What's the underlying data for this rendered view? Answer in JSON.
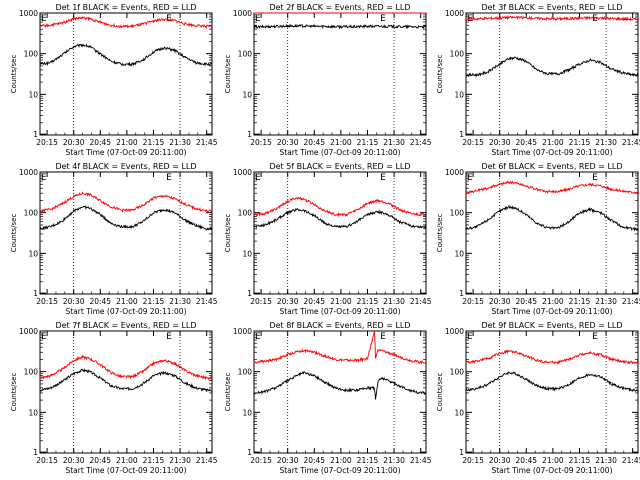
{
  "x_ticks": [
    "20:15",
    "20:30",
    "20:45",
    "21:00",
    "21:15",
    "21:30",
    "21:45"
  ],
  "x_tick_minutes": [
    4,
    19,
    34,
    49,
    64,
    79,
    94
  ],
  "y_tick_labels": [
    "1",
    "10",
    "100",
    "1000"
  ],
  "xlabel": "Start Time (07-Oct-09 20:11:00)",
  "ylabel": "Counts/sec",
  "marker_label": "E",
  "colors": {
    "events": "#000000",
    "lld": "#ff0000"
  },
  "chart_data": [
    {
      "type": "line",
      "title": "Det 1f BLACK = Events, RED = LLD",
      "xlabel": "Start Time (07-Oct-09 20:11:00)",
      "ylabel": "Counts/sec",
      "xlim": [
        0,
        97
      ],
      "ylim": [
        1,
        1000
      ],
      "yscale": "log",
      "vlines": [
        19,
        79
      ],
      "x": [
        0,
        6,
        12,
        19,
        24,
        28,
        34,
        40,
        46,
        52,
        58,
        64,
        70,
        76,
        82,
        88,
        94,
        97
      ],
      "series": [
        {
          "name": "Events",
          "color": "#000000",
          "values": [
            55,
            60,
            90,
            150,
            165,
            150,
            100,
            65,
            55,
            55,
            70,
            110,
            140,
            120,
            80,
            60,
            55,
            55
          ]
        },
        {
          "name": "LLD",
          "color": "#ff0000",
          "values": [
            480,
            500,
            560,
            720,
            760,
            720,
            590,
            500,
            470,
            470,
            530,
            640,
            700,
            650,
            540,
            490,
            470,
            470
          ]
        }
      ]
    },
    {
      "type": "line",
      "title": "Det 2f BLACK = Events, RED = LLD",
      "xlabel": "Start Time (07-Oct-09 20:11:00)",
      "ylabel": "Counts/sec",
      "xlim": [
        0,
        97
      ],
      "ylim": [
        1,
        1000
      ],
      "yscale": "log",
      "vlines": [
        19,
        79
      ],
      "x": [
        0,
        6,
        12,
        19,
        24,
        28,
        34,
        40,
        46,
        52,
        58,
        64,
        70,
        76,
        82,
        88,
        94,
        97
      ],
      "series": [
        {
          "name": "Events",
          "color": "#000000",
          "values": [
            450,
            460,
            470,
            480,
            480,
            480,
            470,
            470,
            460,
            460,
            460,
            470,
            470,
            470,
            460,
            460,
            450,
            450
          ]
        },
        {
          "name": "LLD",
          "color": "#ff0000",
          "values": [
            1350,
            1350,
            1380,
            1400,
            1400,
            1400,
            1380,
            1380,
            1360,
            1360,
            1360,
            1380,
            1380,
            1370,
            1360,
            1350,
            1340,
            1340
          ]
        }
      ]
    },
    {
      "type": "line",
      "title": "Det 3f BLACK = Events, RED = LLD",
      "xlabel": "Start Time (07-Oct-09 20:11:00)",
      "ylabel": "Counts/sec",
      "xlim": [
        0,
        97
      ],
      "ylim": [
        1,
        1000
      ],
      "yscale": "log",
      "vlines": [
        19,
        79
      ],
      "x": [
        0,
        6,
        12,
        19,
        24,
        28,
        34,
        40,
        46,
        52,
        58,
        64,
        70,
        76,
        82,
        88,
        94,
        97
      ],
      "series": [
        {
          "name": "Events",
          "color": "#000000",
          "values": [
            30,
            30,
            35,
            55,
            75,
            80,
            65,
            40,
            32,
            32,
            40,
            55,
            70,
            60,
            42,
            34,
            30,
            30
          ]
        },
        {
          "name": "LLD",
          "color": "#ff0000",
          "values": [
            700,
            720,
            740,
            760,
            780,
            780,
            760,
            740,
            720,
            720,
            730,
            750,
            760,
            750,
            730,
            720,
            700,
            700
          ]
        }
      ]
    },
    {
      "type": "line",
      "title": "Det 4f BLACK = Events, RED = LLD",
      "xlabel": "Start Time (07-Oct-09 20:11:00)",
      "ylabel": "Counts/sec",
      "xlim": [
        0,
        97
      ],
      "ylim": [
        1,
        1000
      ],
      "yscale": "log",
      "vlines": [
        19,
        79
      ],
      "x": [
        0,
        6,
        12,
        19,
        24,
        28,
        34,
        40,
        46,
        52,
        58,
        64,
        70,
        76,
        82,
        88,
        94,
        97
      ],
      "series": [
        {
          "name": "Events",
          "color": "#000000",
          "values": [
            40,
            45,
            60,
            110,
            140,
            130,
            90,
            55,
            45,
            45,
            60,
            100,
            120,
            100,
            65,
            48,
            40,
            40
          ]
        },
        {
          "name": "LLD",
          "color": "#ff0000",
          "values": [
            110,
            120,
            160,
            250,
            300,
            280,
            200,
            140,
            115,
            115,
            150,
            230,
            260,
            220,
            160,
            125,
            110,
            110
          ]
        }
      ]
    },
    {
      "type": "line",
      "title": "Det 5f BLACK = Events, RED = LLD",
      "xlabel": "Start Time (07-Oct-09 20:11:00)",
      "ylabel": "Counts/sec",
      "xlim": [
        0,
        97
      ],
      "ylim": [
        1,
        1000
      ],
      "yscale": "log",
      "vlines": [
        19,
        79
      ],
      "x": [
        0,
        6,
        12,
        19,
        24,
        28,
        34,
        40,
        46,
        52,
        58,
        64,
        70,
        76,
        82,
        88,
        94,
        97
      ],
      "series": [
        {
          "name": "Events",
          "color": "#000000",
          "values": [
            45,
            50,
            65,
            100,
            120,
            115,
            85,
            55,
            45,
            45,
            60,
            90,
            105,
            90,
            60,
            48,
            45,
            45
          ]
        },
        {
          "name": "LLD",
          "color": "#ff0000",
          "values": [
            90,
            95,
            120,
            190,
            230,
            215,
            160,
            110,
            90,
            90,
            115,
            170,
            200,
            170,
            120,
            95,
            90,
            90
          ]
        }
      ]
    },
    {
      "type": "line",
      "title": "Det 6f BLACK = Events, RED = LLD",
      "xlabel": "Start Time (07-Oct-09 20:11:00)",
      "ylabel": "Counts/sec",
      "xlim": [
        0,
        97
      ],
      "ylim": [
        1,
        1000
      ],
      "yscale": "log",
      "vlines": [
        19,
        79
      ],
      "x": [
        0,
        6,
        12,
        19,
        24,
        28,
        34,
        40,
        46,
        52,
        58,
        64,
        70,
        76,
        82,
        88,
        94,
        97
      ],
      "series": [
        {
          "name": "Events",
          "color": "#000000",
          "values": [
            40,
            45,
            65,
            110,
            140,
            130,
            90,
            55,
            42,
            42,
            60,
            100,
            120,
            100,
            65,
            45,
            40,
            40
          ]
        },
        {
          "name": "LLD",
          "color": "#ff0000",
          "values": [
            320,
            340,
            400,
            500,
            560,
            540,
            450,
            370,
            330,
            330,
            380,
            460,
            500,
            460,
            380,
            340,
            320,
            320
          ]
        }
      ]
    },
    {
      "type": "line",
      "title": "Det 7f BLACK = Events, RED = LLD",
      "xlabel": "Start Time (07-Oct-09 20:11:00)",
      "ylabel": "Counts/sec",
      "xlim": [
        0,
        97
      ],
      "ylim": [
        1,
        1000
      ],
      "yscale": "log",
      "vlines": [
        19,
        79
      ],
      "x": [
        0,
        6,
        12,
        19,
        24,
        28,
        34,
        40,
        46,
        52,
        58,
        64,
        70,
        76,
        82,
        88,
        94,
        97
      ],
      "series": [
        {
          "name": "Events",
          "color": "#000000",
          "values": [
            35,
            40,
            55,
            90,
            110,
            100,
            70,
            45,
            38,
            38,
            50,
            80,
            95,
            80,
            52,
            40,
            35,
            35
          ]
        },
        {
          "name": "LLD",
          "color": "#ff0000",
          "values": [
            70,
            80,
            110,
            190,
            230,
            210,
            150,
            95,
            75,
            75,
            100,
            160,
            190,
            160,
            105,
            80,
            70,
            70
          ]
        }
      ]
    },
    {
      "type": "line",
      "title": "Det 8f BLACK = Events, RED = LLD",
      "xlabel": "Start Time (07-Oct-09 20:11:00)",
      "ylabel": "Counts/sec",
      "xlim": [
        0,
        97
      ],
      "ylim": [
        1,
        1000
      ],
      "yscale": "log",
      "vlines": [
        19,
        79
      ],
      "x": [
        0,
        6,
        12,
        19,
        24,
        28,
        34,
        40,
        46,
        52,
        58,
        64,
        68,
        68.5,
        70,
        72,
        76,
        82,
        88,
        94,
        97
      ],
      "series": [
        {
          "name": "Events",
          "color": "#000000",
          "values": [
            30,
            32,
            40,
            60,
            80,
            95,
            80,
            55,
            40,
            35,
            35,
            40,
            40,
            20,
            60,
            70,
            60,
            45,
            35,
            30,
            30
          ]
        },
        {
          "name": "LLD",
          "color": "#ff0000",
          "values": [
            170,
            180,
            200,
            260,
            310,
            330,
            300,
            240,
            200,
            190,
            190,
            210,
            1000,
            220,
            340,
            330,
            290,
            230,
            190,
            170,
            170
          ]
        }
      ]
    },
    {
      "type": "line",
      "title": "Det 9f BLACK = Events, RED = LLD",
      "xlabel": "Start Time (07-Oct-09 20:11:00)",
      "ylabel": "Counts/sec",
      "xlim": [
        0,
        97
      ],
      "ylim": [
        1,
        1000
      ],
      "yscale": "log",
      "vlines": [
        19,
        79
      ],
      "x": [
        0,
        6,
        12,
        19,
        24,
        28,
        34,
        40,
        46,
        52,
        58,
        64,
        70,
        76,
        82,
        88,
        94,
        97
      ],
      "series": [
        {
          "name": "Events",
          "color": "#000000",
          "values": [
            35,
            38,
            48,
            75,
            95,
            90,
            65,
            45,
            38,
            38,
            48,
            70,
            85,
            75,
            50,
            40,
            35,
            35
          ]
        },
        {
          "name": "LLD",
          "color": "#ff0000",
          "values": [
            170,
            180,
            210,
            280,
            320,
            300,
            240,
            190,
            170,
            170,
            200,
            260,
            290,
            260,
            200,
            175,
            170,
            170
          ]
        }
      ]
    }
  ]
}
